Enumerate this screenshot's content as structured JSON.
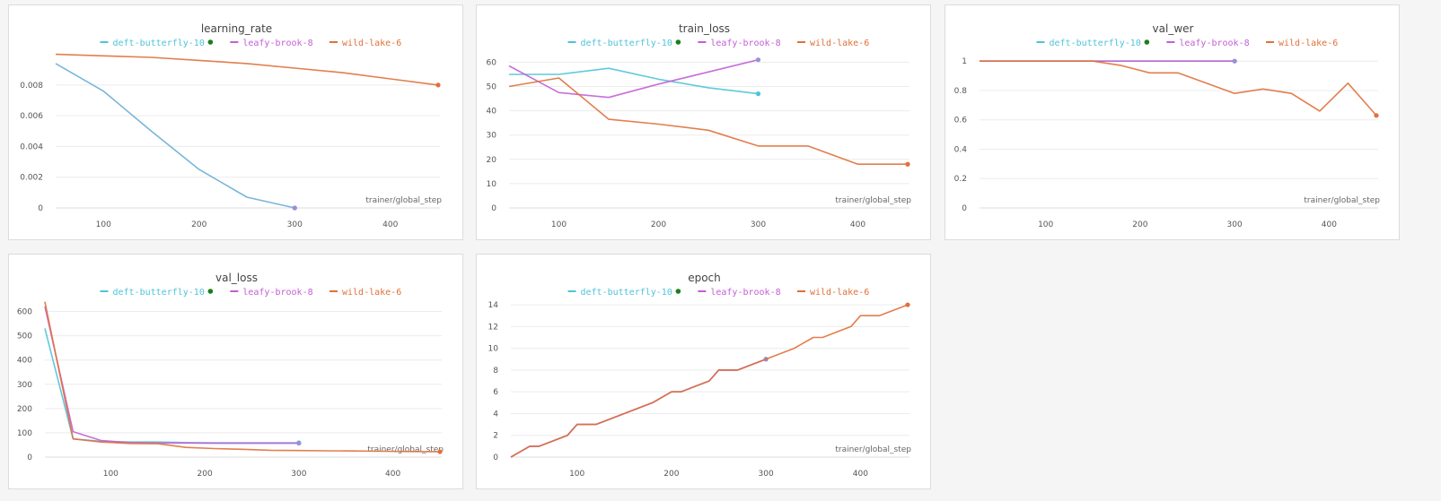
{
  "chart_data": [
    {
      "type": "line",
      "title": "learning_rate",
      "xlabel": "trainer/global_step",
      "ylabel": "",
      "xlim": [
        50,
        450
      ],
      "ylim": [
        0,
        0.0098
      ],
      "xticks": [
        100,
        200,
        300,
        400
      ],
      "yticks": [
        0,
        0.002,
        0.004,
        0.006,
        0.008
      ],
      "ytick_labels": [
        "0",
        "0.002",
        "0.004",
        "0.006",
        "0.008"
      ],
      "series": [
        {
          "name": "deft-butterfly-10",
          "x": [
            50,
            100,
            150,
            200,
            250,
            300
          ],
          "y": [
            0.0094,
            0.0076,
            0.005,
            0.0025,
            0.0007,
            0
          ]
        },
        {
          "name": "leafy-brook-8",
          "x": [
            300
          ],
          "y": [
            0
          ]
        },
        {
          "name": "wild-lake-6",
          "x": [
            50,
            100,
            150,
            200,
            250,
            300,
            350,
            400,
            450
          ],
          "y": [
            0.01,
            0.0099,
            0.0098,
            0.0096,
            0.0094,
            0.0091,
            0.0088,
            0.0084,
            0.008
          ]
        }
      ]
    },
    {
      "type": "line",
      "title": "train_loss",
      "xlabel": "trainer/global_step",
      "ylabel": "",
      "xlim": [
        50,
        450
      ],
      "ylim": [
        0,
        62
      ],
      "xticks": [
        100,
        200,
        300,
        400
      ],
      "yticks": [
        0,
        10,
        20,
        30,
        40,
        50,
        60
      ],
      "ytick_labels": [
        "0",
        "10",
        "20",
        "30",
        "40",
        "50",
        "60"
      ],
      "series": [
        {
          "name": "deft-butterfly-10",
          "x": [
            50,
            100,
            150,
            200,
            250,
            300
          ],
          "y": [
            55,
            55,
            57.5,
            53,
            49.5,
            47
          ]
        },
        {
          "name": "leafy-brook-8",
          "x": [
            50,
            100,
            150,
            200,
            250,
            300
          ],
          "y": [
            58.5,
            47.5,
            45.5,
            51,
            56,
            61
          ]
        },
        {
          "name": "wild-lake-6",
          "x": [
            50,
            100,
            150,
            200,
            250,
            300,
            350,
            400,
            450
          ],
          "y": [
            50,
            53.5,
            36.5,
            34.5,
            32,
            25.5,
            25.5,
            18,
            18
          ]
        }
      ]
    },
    {
      "type": "line",
      "title": "val_wer",
      "xlabel": "trainer/global_step",
      "ylabel": "",
      "xlim": [
        30,
        450
      ],
      "ylim": [
        0,
        1.05
      ],
      "xticks": [
        100,
        200,
        300,
        400
      ],
      "yticks": [
        0,
        0.2,
        0.4,
        0.6,
        0.8,
        1
      ],
      "ytick_labels": [
        "0",
        "0.2",
        "0.4",
        "0.6",
        "0.8",
        "1"
      ],
      "series": [
        {
          "name": "deft-butterfly-10",
          "x": [
            30,
            60,
            90,
            120,
            150,
            180,
            210,
            240,
            270,
            300
          ],
          "y": [
            1,
            1,
            1,
            1,
            1,
            1,
            1,
            1,
            1,
            1
          ]
        },
        {
          "name": "leafy-brook-8",
          "x": [
            30,
            60,
            90,
            120,
            150,
            180,
            210,
            240,
            270,
            300
          ],
          "y": [
            1,
            1,
            1,
            1,
            1,
            1,
            1,
            1,
            1,
            1
          ]
        },
        {
          "name": "wild-lake-6",
          "x": [
            30,
            60,
            90,
            120,
            150,
            180,
            210,
            240,
            270,
            300,
            330,
            360,
            390,
            420,
            450
          ],
          "y": [
            1,
            1,
            1,
            1,
            1,
            0.97,
            0.92,
            0.92,
            0.85,
            0.78,
            0.81,
            0.78,
            0.66,
            0.85,
            0.63
          ]
        }
      ]
    },
    {
      "type": "line",
      "title": "val_loss",
      "xlabel": "trainer/global_step",
      "ylabel": "",
      "xlim": [
        30,
        450
      ],
      "ylim": [
        0,
        650
      ],
      "xticks": [
        100,
        200,
        300,
        400
      ],
      "yticks": [
        0,
        100,
        200,
        300,
        400,
        500,
        600
      ],
      "ytick_labels": [
        "0",
        "100",
        "200",
        "300",
        "400",
        "500",
        "600"
      ],
      "series": [
        {
          "name": "deft-butterfly-10",
          "x": [
            30,
            60,
            90,
            120,
            150,
            180,
            210,
            240,
            270,
            300
          ],
          "y": [
            530,
            75,
            65,
            62,
            62,
            60,
            59,
            59,
            59,
            59
          ]
        },
        {
          "name": "leafy-brook-8",
          "x": [
            30,
            60,
            90,
            120,
            150,
            180,
            210,
            240,
            270,
            300
          ],
          "y": [
            620,
            105,
            68,
            60,
            58,
            58,
            57,
            57,
            57,
            57
          ]
        },
        {
          "name": "wild-lake-6",
          "x": [
            30,
            60,
            90,
            120,
            150,
            180,
            210,
            240,
            270,
            300,
            330,
            360,
            390,
            420,
            450
          ],
          "y": [
            640,
            75,
            62,
            56,
            55,
            40,
            35,
            32,
            28,
            27,
            26,
            25,
            24,
            23,
            22
          ]
        }
      ]
    },
    {
      "type": "line",
      "title": "epoch",
      "xlabel": "trainer/global_step",
      "ylabel": "",
      "xlim": [
        30,
        450
      ],
      "ylim": [
        0,
        14.5
      ],
      "xticks": [
        100,
        200,
        300,
        400
      ],
      "yticks": [
        0,
        2,
        4,
        6,
        8,
        10,
        12,
        14
      ],
      "ytick_labels": [
        "0",
        "2",
        "4",
        "6",
        "8",
        "10",
        "12",
        "14"
      ],
      "series": [
        {
          "name": "deft-butterfly-10",
          "x": [
            30,
            50,
            60,
            90,
            100,
            120,
            180,
            200,
            210,
            240,
            250,
            270,
            300
          ],
          "y": [
            0,
            1,
            1,
            2,
            3,
            3,
            5,
            6,
            6,
            7,
            8,
            8,
            9
          ]
        },
        {
          "name": "leafy-brook-8",
          "x": [
            30,
            50,
            60,
            90,
            100,
            120,
            180,
            200,
            210,
            240,
            250,
            270,
            300
          ],
          "y": [
            0,
            1,
            1,
            2,
            3,
            3,
            5,
            6,
            6,
            7,
            8,
            8,
            9
          ]
        },
        {
          "name": "wild-lake-6",
          "x": [
            30,
            50,
            60,
            90,
            100,
            120,
            180,
            200,
            210,
            240,
            250,
            270,
            300,
            330,
            350,
            360,
            390,
            400,
            420,
            450
          ],
          "y": [
            0,
            1,
            1,
            2,
            3,
            3,
            5,
            6,
            6,
            7,
            8,
            8,
            9,
            10,
            11,
            11,
            12,
            13,
            13,
            14
          ]
        }
      ]
    }
  ],
  "legend": {
    "items": [
      {
        "name": "deft-butterfly-10",
        "color": "#4fc3d9",
        "dot_color": "#1a7f1a",
        "has_dot": true
      },
      {
        "name": "leafy-brook-8",
        "color": "#c35ed6",
        "has_dot": false
      },
      {
        "name": "wild-lake-6",
        "color": "#e0703a",
        "has_dot": false
      }
    ]
  },
  "series_colors": {
    "deft-butterfly-10": "#4fc3d9",
    "leafy-brook-8": "#c35ed6",
    "wild-lake-6": "#e0703a"
  },
  "line_colors_learning_rate": {
    "deft-butterfly-10": "#6aaed6"
  },
  "endpoint_colors": {
    "leafy-brook-8": "#9b8fd6"
  }
}
